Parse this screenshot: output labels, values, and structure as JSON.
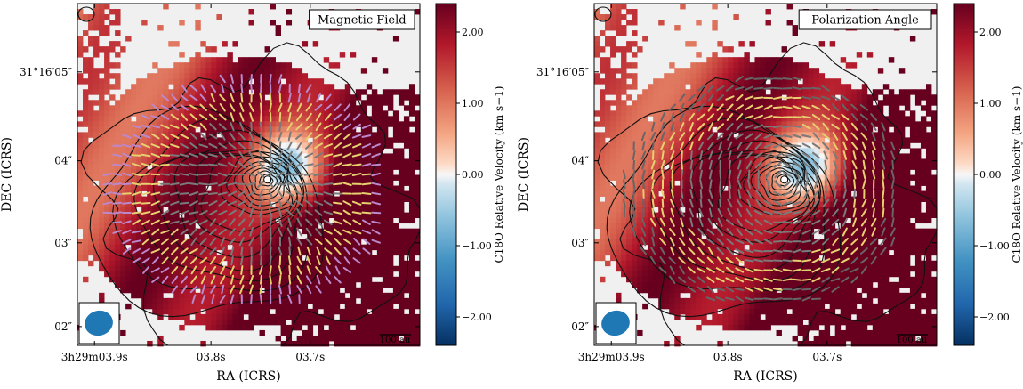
{
  "chart_data": [
    {
      "type": "heatmap",
      "panel_title": "Magnetic Field",
      "xlabel": "RA (ICRS)",
      "ylabel": "DEC (ICRS)",
      "x_ticks": [
        "3h29m03.9s",
        "03.8s",
        "03.7s"
      ],
      "y_ticks": [
        "31°16′05″",
        "04″",
        "03″",
        "02″"
      ],
      "colorbar": {
        "label": "C18O Relative Velocity (km s−1)",
        "ticks": [
          "2.00",
          "1.00",
          "0.00",
          "−1.00",
          "−2.00"
        ],
        "range": [
          -2.4,
          2.4
        ],
        "colormap": "RdBu_r"
      },
      "scale_bar": "100 au",
      "vector_type": "magnetic-field",
      "vector_colors": [
        "#7a7a7a",
        "#e6d070",
        "#bb88cc"
      ]
    },
    {
      "type": "heatmap",
      "panel_title": "Polarization Angle",
      "xlabel": "RA (ICRS)",
      "ylabel": "DEC (ICRS)",
      "x_ticks": [
        "3h29m03.9s",
        "03.8s",
        "03.7s"
      ],
      "y_ticks": [
        "31°16′05″",
        "04″",
        "03″",
        "02″"
      ],
      "colorbar": {
        "label": "C18O Relative Velocity (km s−1)",
        "ticks": [
          "2.00",
          "1.00",
          "0.00",
          "−1.00",
          "−2.00"
        ],
        "range": [
          -2.4,
          2.4
        ],
        "colormap": "RdBu_r"
      },
      "scale_bar": "100 au",
      "vector_type": "polarization-angle",
      "vector_colors": [
        "#7a7a7a",
        "#e6d070",
        "#666666"
      ]
    }
  ]
}
